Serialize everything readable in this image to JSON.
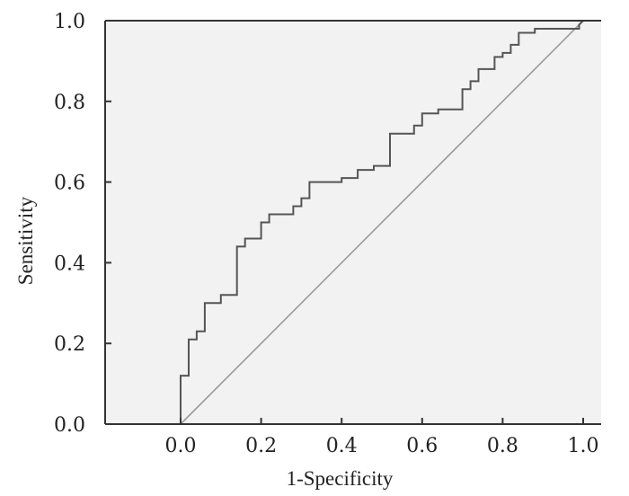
{
  "chart_data": {
    "type": "line",
    "title": "",
    "xlabel": "1-Specificity",
    "ylabel": "Sensitivity",
    "xlim": [
      -0.19,
      1.0
    ],
    "ylim": [
      0.0,
      1.0
    ],
    "grid": false,
    "x_ticks": [
      {
        "value": 0.0,
        "label": "0.0"
      },
      {
        "value": 0.2,
        "label": "0.2"
      },
      {
        "value": 0.4,
        "label": "0.4"
      },
      {
        "value": 0.6,
        "label": "0.6"
      },
      {
        "value": 0.8,
        "label": "0.8"
      },
      {
        "value": 1.0,
        "label": "1.0"
      }
    ],
    "y_ticks": [
      {
        "value": 0.0,
        "label": "0.0"
      },
      {
        "value": 0.2,
        "label": "0.2"
      },
      {
        "value": 0.4,
        "label": "0.4"
      },
      {
        "value": 0.6,
        "label": "0.6"
      },
      {
        "value": 0.8,
        "label": "0.8"
      },
      {
        "value": 1.0,
        "label": "1.0"
      }
    ],
    "series": [
      {
        "style": "step",
        "color": "#555555",
        "x": [
          0.0,
          0.0,
          0.02,
          0.02,
          0.04,
          0.04,
          0.06,
          0.06,
          0.1,
          0.1,
          0.14,
          0.14,
          0.16,
          0.16,
          0.2,
          0.2,
          0.22,
          0.22,
          0.28,
          0.28,
          0.3,
          0.3,
          0.32,
          0.32,
          0.4,
          0.4,
          0.44,
          0.44,
          0.48,
          0.48,
          0.52,
          0.52,
          0.58,
          0.58,
          0.6,
          0.6,
          0.64,
          0.64,
          0.7,
          0.7,
          0.72,
          0.72,
          0.74,
          0.74,
          0.78,
          0.78,
          0.8,
          0.8,
          0.82,
          0.82,
          0.84,
          0.84,
          0.88,
          0.88,
          0.99,
          0.99,
          1.0
        ],
        "y": [
          0.0,
          0.12,
          0.12,
          0.21,
          0.21,
          0.23,
          0.23,
          0.3,
          0.3,
          0.32,
          0.32,
          0.44,
          0.44,
          0.46,
          0.46,
          0.5,
          0.5,
          0.52,
          0.52,
          0.54,
          0.54,
          0.56,
          0.56,
          0.6,
          0.6,
          0.61,
          0.61,
          0.63,
          0.63,
          0.64,
          0.64,
          0.72,
          0.72,
          0.74,
          0.74,
          0.77,
          0.77,
          0.78,
          0.78,
          0.83,
          0.83,
          0.85,
          0.85,
          0.88,
          0.88,
          0.91,
          0.91,
          0.92,
          0.92,
          0.94,
          0.94,
          0.97,
          0.97,
          0.98,
          0.98,
          0.99,
          1.0
        ]
      },
      {
        "style": "reference",
        "color": "#9a9a9a",
        "x": [
          0.0,
          1.0
        ],
        "y": [
          0.0,
          1.0
        ]
      }
    ],
    "colors": {
      "plot_background": "#f2f2f2",
      "frame": "#333333"
    }
  }
}
